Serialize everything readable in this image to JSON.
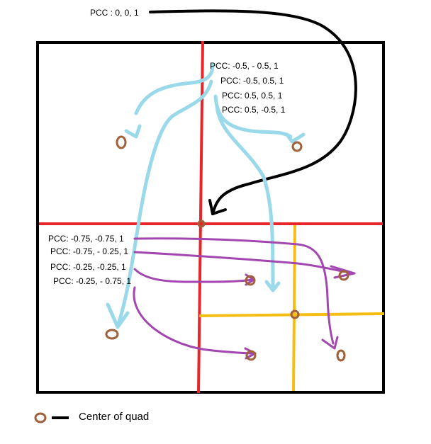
{
  "colors": {
    "outer_box": "#000000",
    "level1_split": "#e8262a",
    "level2_split": "#f5be14",
    "quad_center": "#a0603a",
    "arrows_level1": "#9ad9ea",
    "arrows_level2": "#a347b0",
    "arrow_root": "#000000"
  },
  "labels": {
    "root": "PCC : 0, 0, 1",
    "level1": [
      "PCC: -0.5, - 0.5, 1",
      "PCC: -0.5, 0.5, 1",
      "PCC: 0.5, 0.5, 1",
      "PCC: 0.5, -0.5, 1"
    ],
    "level2": [
      "PCC: -0.75, -0.75, 1",
      "PCC: -0.75, - 0.25, 1",
      "PCC: -0.25, -0.25, 1",
      "PCC: -0.25, - 0.75, 1"
    ]
  },
  "legend": {
    "text": "Center of quad"
  }
}
